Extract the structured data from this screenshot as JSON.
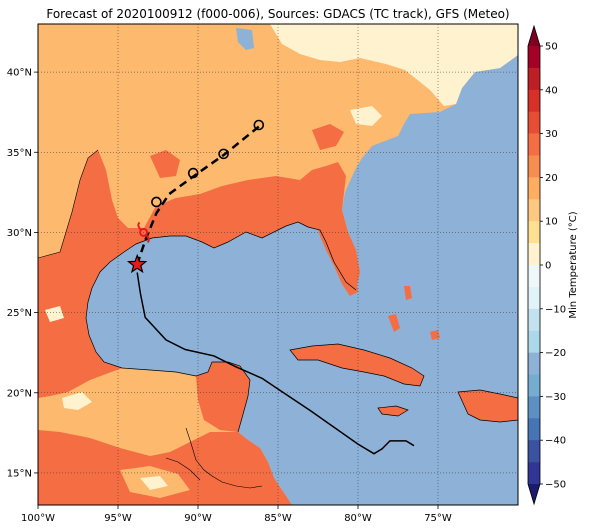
{
  "figure": {
    "title": "Forecast of 2020100912 (f000-006), Sources: GDACS (TC track), GFS (Meteo)"
  },
  "map": {
    "lon_range": [
      -100,
      -70
    ],
    "lat_range": [
      13,
      43
    ],
    "lon_ticks": [
      {
        "value": -100,
        "label": "100°W"
      },
      {
        "value": -95,
        "label": "95°W"
      },
      {
        "value": -90,
        "label": "90°W"
      },
      {
        "value": -85,
        "label": "85°W"
      },
      {
        "value": -80,
        "label": "80°W"
      },
      {
        "value": -75,
        "label": "75°W"
      }
    ],
    "lat_ticks": [
      {
        "value": 15,
        "label": "15°N"
      },
      {
        "value": 20,
        "label": "20°N"
      },
      {
        "value": 25,
        "label": "25°N"
      },
      {
        "value": 30,
        "label": "30°N"
      },
      {
        "value": 35,
        "label": "35°N"
      },
      {
        "value": 40,
        "label": "40°N"
      }
    ],
    "grid": "dotted",
    "colors": {
      "ocean": "#8eb1d7",
      "temp_0_10": "#fff3cf",
      "temp_10_20": "#fdb96e",
      "temp_20_30": "#f46d43",
      "track": "#000000",
      "current_position_marker": "#e41a1c"
    }
  },
  "track": {
    "past_line": "solid",
    "forecast_line": "dashed",
    "past": [
      {
        "lon": -76.5,
        "lat": 16.7
      },
      {
        "lon": -77.0,
        "lat": 17.0
      },
      {
        "lon": -78.0,
        "lat": 17.0
      },
      {
        "lon": -78.5,
        "lat": 16.5
      },
      {
        "lon": -79.0,
        "lat": 16.2
      },
      {
        "lon": -80.0,
        "lat": 16.8
      },
      {
        "lon": -83.0,
        "lat": 18.9
      },
      {
        "lon": -84.5,
        "lat": 19.9
      },
      {
        "lon": -86.0,
        "lat": 20.9
      },
      {
        "lon": -87.6,
        "lat": 21.6
      },
      {
        "lon": -89.0,
        "lat": 22.3
      },
      {
        "lon": -90.8,
        "lat": 22.7
      },
      {
        "lon": -92.0,
        "lat": 23.3
      },
      {
        "lon": -93.3,
        "lat": 24.7
      },
      {
        "lon": -93.6,
        "lat": 26.2
      },
      {
        "lon": -93.8,
        "lat": 27.5
      }
    ],
    "forecast": [
      {
        "lon": -93.8,
        "lat": 28.0
      },
      {
        "lon": -93.3,
        "lat": 29.5
      },
      {
        "lon": -92.6,
        "lat": 31.2
      },
      {
        "lon": -91.8,
        "lat": 32.4
      },
      {
        "lon": -90.0,
        "lat": 33.7
      },
      {
        "lon": -88.3,
        "lat": 34.9
      },
      {
        "lon": -86.2,
        "lat": 36.6
      }
    ],
    "current_position": {
      "lon": -93.8,
      "lat": 28.0
    },
    "forecast_points": [
      {
        "lon": -92.6,
        "lat": 31.9
      },
      {
        "lon": -90.3,
        "lat": 33.7
      },
      {
        "lon": -88.4,
        "lat": 34.9
      },
      {
        "lon": -86.2,
        "lat": 36.7
      }
    ],
    "secondary_marker": {
      "lon": -93.4,
      "lat": 30.0
    }
  },
  "colorbar": {
    "label": "Min Temperature (°C)",
    "min": -50,
    "max": 50,
    "ticks": [
      50,
      40,
      30,
      20,
      10,
      0,
      -10,
      -20,
      -30,
      -40,
      -50
    ],
    "tick_labels": [
      "50",
      "40",
      "30",
      "20",
      "10",
      "0",
      "−10",
      "−20",
      "−30",
      "−40",
      "−50"
    ],
    "bands": [
      {
        "from": 45,
        "to": 50,
        "color": "#a50026"
      },
      {
        "from": 40,
        "to": 45,
        "color": "#bd1f26"
      },
      {
        "from": 35,
        "to": 40,
        "color": "#d73027"
      },
      {
        "from": 30,
        "to": 35,
        "color": "#e54e35"
      },
      {
        "from": 25,
        "to": 30,
        "color": "#f46d43"
      },
      {
        "from": 20,
        "to": 25,
        "color": "#f88d52"
      },
      {
        "from": 15,
        "to": 20,
        "color": "#fdae61"
      },
      {
        "from": 10,
        "to": 15,
        "color": "#fdc981"
      },
      {
        "from": 5,
        "to": 10,
        "color": "#fee090"
      },
      {
        "from": 0,
        "to": 5,
        "color": "#fff3cf"
      },
      {
        "from": -5,
        "to": 0,
        "color": "#eef8fb"
      },
      {
        "from": -10,
        "to": -5,
        "color": "#e0f3f8"
      },
      {
        "from": -15,
        "to": -10,
        "color": "#c2e2ef"
      },
      {
        "from": -20,
        "to": -15,
        "color": "#abd9e9"
      },
      {
        "from": -25,
        "to": -20,
        "color": "#8eb1d7"
      },
      {
        "from": -30,
        "to": -25,
        "color": "#74add1"
      },
      {
        "from": -35,
        "to": -30,
        "color": "#5d8fc3"
      },
      {
        "from": -40,
        "to": -35,
        "color": "#4575b4"
      },
      {
        "from": -45,
        "to": -40,
        "color": "#3a52a0"
      },
      {
        "from": -50,
        "to": -45,
        "color": "#313695"
      }
    ],
    "extend_top_color": "#7f0020",
    "extend_bottom_color": "#1a1a6e"
  }
}
